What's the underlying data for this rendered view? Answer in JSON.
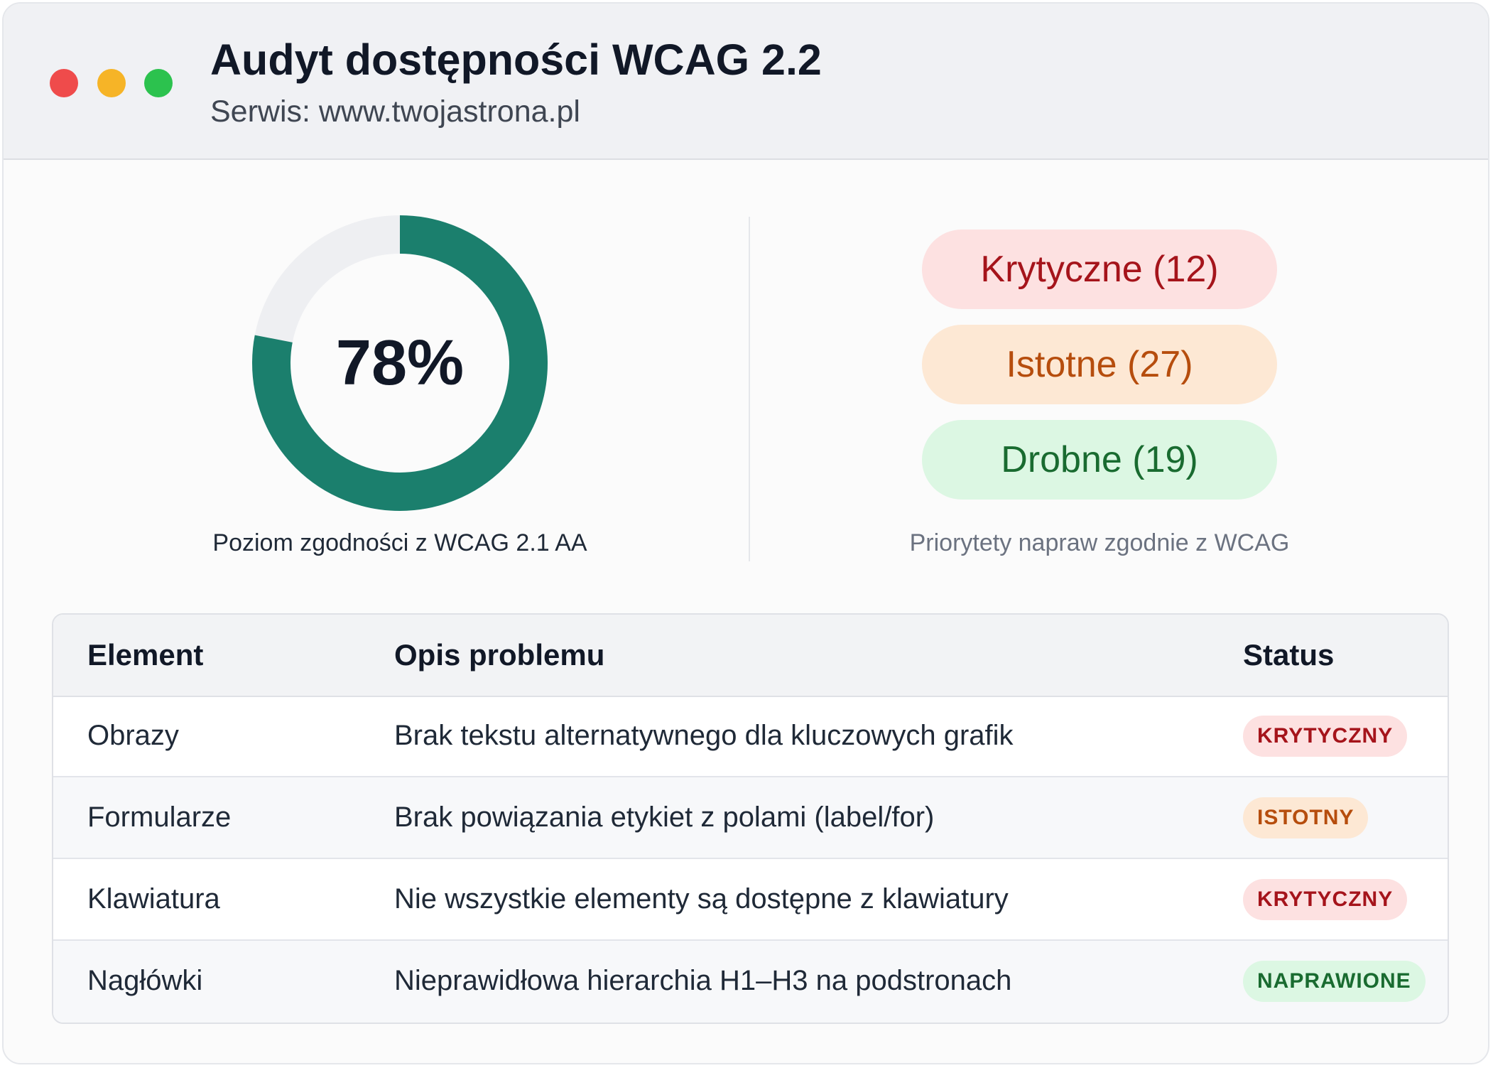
{
  "header": {
    "title": "Audyt dostępności WCAG 2.2",
    "subtitle": "Serwis: www.twojastrona.pl"
  },
  "compliance": {
    "value_label": "78%",
    "fraction": 0.78,
    "caption": "Poziom zgodności z WCAG 2.1 AA",
    "fill_color": "#1b7f6d",
    "track_color": "#eeeff2"
  },
  "priorities": {
    "critical": "Krytyczne (12)",
    "major": "Istotne (27)",
    "minor": "Drobne (19)",
    "caption": "Priorytety napraw zgodnie z WCAG"
  },
  "table": {
    "headers": [
      "Element",
      "Opis problemu",
      "Status"
    ],
    "rows": [
      {
        "element": "Obrazy",
        "description": "Brak tekstu alternatywnego dla kluczowych grafik",
        "status": "KRYTYCZNY",
        "status_kind": "krytyczny"
      },
      {
        "element": "Formularze",
        "description": "Brak powiązania etykiet z polami (label/for)",
        "status": "ISTOTNY",
        "status_kind": "istotny"
      },
      {
        "element": "Klawiatura",
        "description": "Nie wszystkie elementy są dostępne z klawiatury",
        "status": "KRYTYCZNY",
        "status_kind": "krytyczny"
      },
      {
        "element": "Nagłówki",
        "description": "Nieprawidłowa hierarchia H1–H3 na podstronach",
        "status": "NAPRAWIONE",
        "status_kind": "naprawione"
      }
    ]
  },
  "colors": {
    "critical": "#a5141b",
    "major": "#b64d0d",
    "minor": "#196b30"
  }
}
